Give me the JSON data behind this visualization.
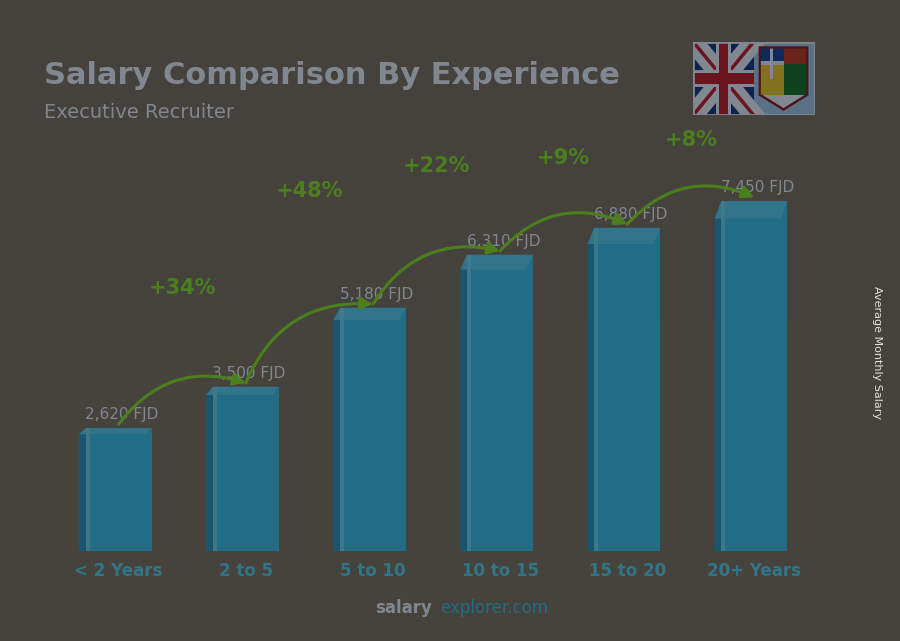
{
  "title": "Salary Comparison By Experience",
  "subtitle": "Executive Recruiter",
  "categories": [
    "< 2 Years",
    "2 to 5",
    "5 to 10",
    "10 to 15",
    "15 to 20",
    "20+ Years"
  ],
  "values": [
    2620,
    3500,
    5180,
    6310,
    6880,
    7450
  ],
  "labels": [
    "2,620 FJD",
    "3,500 FJD",
    "5,180 FJD",
    "6,310 FJD",
    "6,880 FJD",
    "7,450 FJD"
  ],
  "pct_changes": [
    "+34%",
    "+48%",
    "+22%",
    "+9%",
    "+8%"
  ],
  "bar_color_main": "#2BC5E8",
  "bar_color_dark": "#1490B8",
  "bar_color_light": "#7AE8F8",
  "bar_color_top": "#50D5F0",
  "bg_color": "#1a1a2e",
  "title_color": "#FFFFFF",
  "subtitle_color": "#FFFFFF",
  "label_color": "#FFFFFF",
  "pct_color": "#88EE00",
  "arrow_color": "#88EE00",
  "tick_color": "#4DD8F0",
  "footer_color_bold": "#FFFFFF",
  "footer_color_light": "#4DD8F0",
  "right_label": "Average Monthly Salary",
  "ylim": [
    0,
    9000
  ],
  "bar_width": 0.52,
  "label_fontsize": 11,
  "pct_fontsize": 15,
  "title_fontsize": 22,
  "subtitle_fontsize": 14,
  "tick_fontsize": 12
}
